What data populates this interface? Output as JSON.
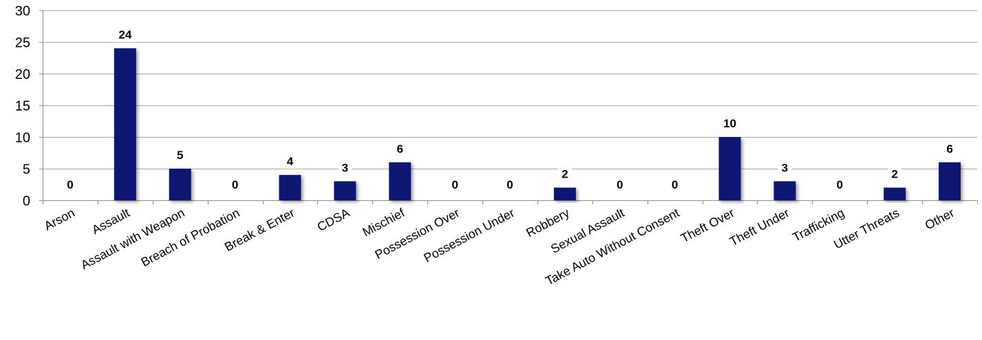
{
  "chart_data": {
    "type": "bar",
    "title": "",
    "xlabel": "",
    "ylabel": "",
    "categories": [
      "Arson",
      "Assault",
      "Assault with Weapon",
      "Breach of Probation",
      "Break & Enter",
      "CDSA",
      "Mischief",
      "Possession Over",
      "Possession Under",
      "Robbery",
      "Sexual Assault",
      "Take Auto Without Consent",
      "Theft Over",
      "Theft Under",
      "Trafficking",
      "Utter Threats",
      "Other"
    ],
    "values": [
      0,
      24,
      5,
      0,
      4,
      3,
      6,
      0,
      0,
      2,
      0,
      0,
      10,
      3,
      0,
      2,
      6
    ],
    "data_labels": [
      "0",
      "24",
      "5",
      "0",
      "4",
      "3",
      "6",
      "0",
      "0",
      "2",
      "0",
      "0",
      "10",
      "3",
      "0",
      "2",
      "6"
    ],
    "ylim": [
      0,
      30
    ],
    "yticks": [
      0,
      5,
      10,
      15,
      20,
      25,
      30
    ],
    "ytick_labels": [
      "0",
      "5",
      "10",
      "15",
      "20",
      "25",
      "30"
    ],
    "grid": true,
    "legend": "none",
    "bar_color": "#0b1670",
    "grid_color": "#a6a6a6"
  }
}
